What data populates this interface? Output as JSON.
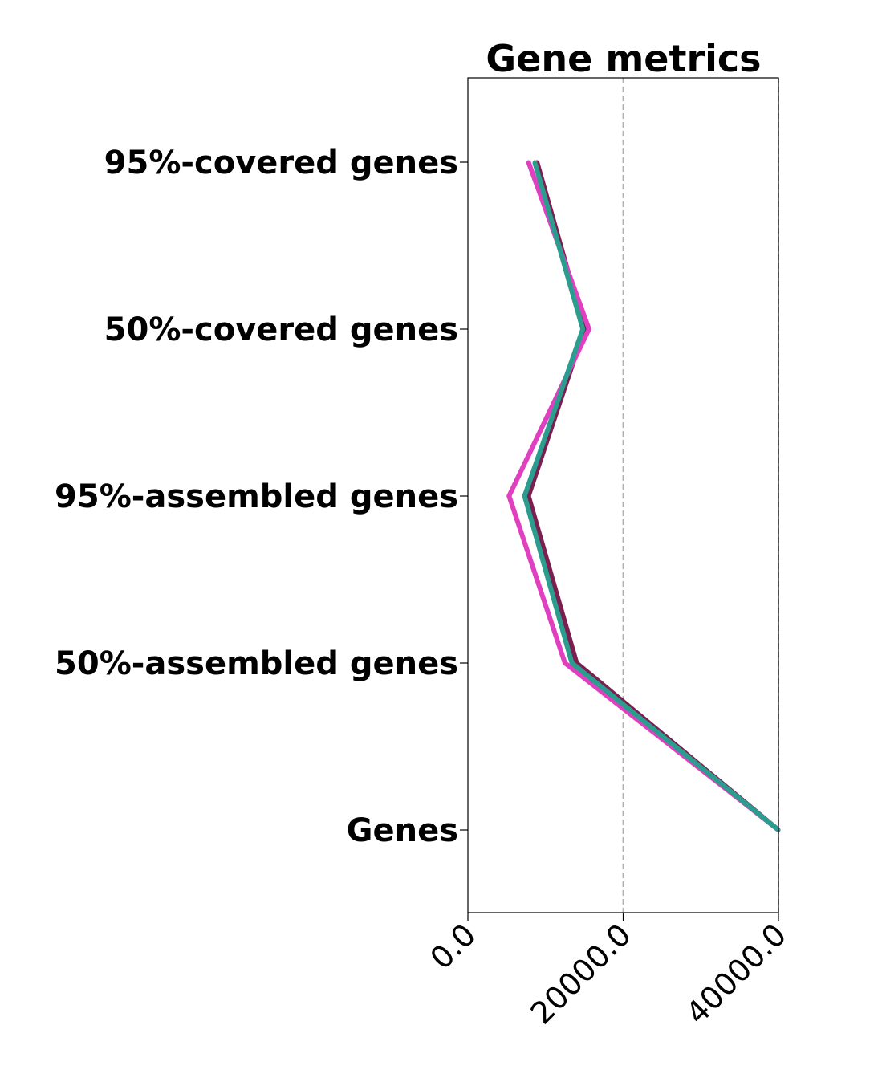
{
  "chart_data": {
    "type": "line",
    "title": "Gene metrics",
    "xlabel": "",
    "ylabel": "",
    "xlim": [
      0,
      40000
    ],
    "x_ticks": [
      0,
      20000,
      40000
    ],
    "x_tick_labels": [
      "0.0",
      "20000.0",
      "40000.0"
    ],
    "grid": "vertical dashed",
    "legend": "none",
    "categories": [
      "95%-covered genes",
      "50%-covered genes",
      "95%-assembled genes",
      "50%-assembled genes",
      "Genes"
    ],
    "series": [
      {
        "color": "#7a1f4f",
        "values": [
          8900,
          15000,
          7800,
          14000,
          40000
        ]
      },
      {
        "color": "#e040c0",
        "values": [
          7800,
          15600,
          5300,
          12500,
          40000
        ]
      },
      {
        "color": "#2a9d8f",
        "values": [
          8600,
          14800,
          7300,
          13400,
          40000
        ]
      }
    ]
  }
}
